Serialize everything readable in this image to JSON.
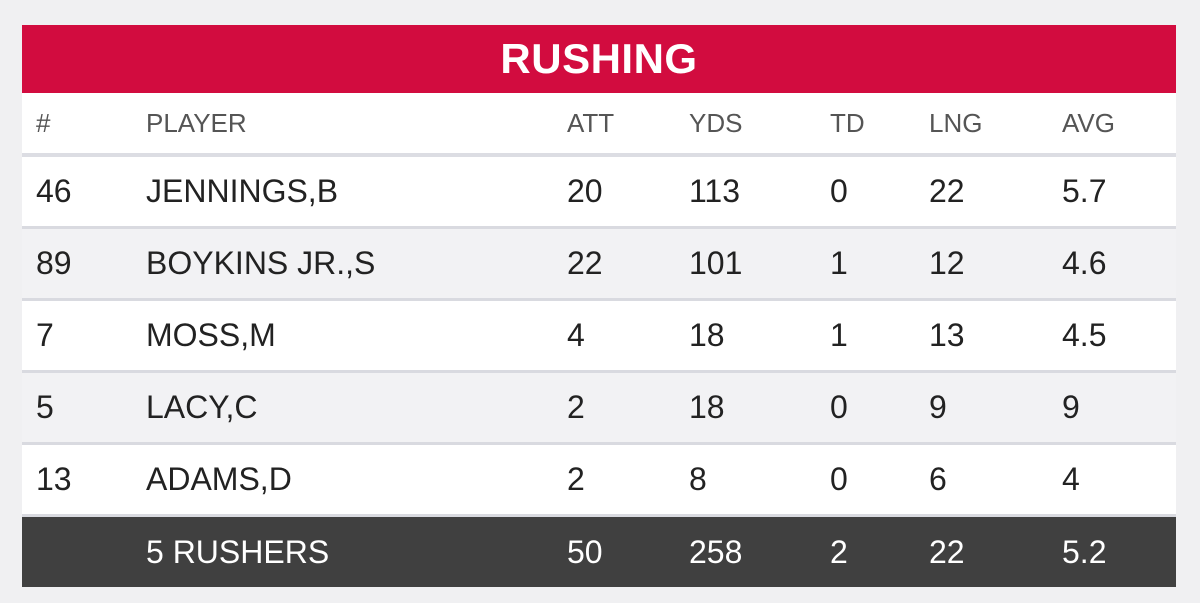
{
  "title": "RUSHING",
  "colors": {
    "title_bar": "#d20c3f",
    "total_row": "#404040",
    "alt_row": "#f2f2f4"
  },
  "headers": {
    "num": "#",
    "player": "PLAYER",
    "att": "ATT",
    "yds": "YDS",
    "td": "TD",
    "lng": "LNG",
    "avg": "AVG"
  },
  "rows": [
    {
      "num": "46",
      "player": "JENNINGS,B",
      "att": "20",
      "yds": "113",
      "td": "0",
      "lng": "22",
      "avg": "5.7"
    },
    {
      "num": "89",
      "player": "BOYKINS JR.,S",
      "att": "22",
      "yds": "101",
      "td": "1",
      "lng": "12",
      "avg": "4.6"
    },
    {
      "num": "7",
      "player": "MOSS,M",
      "att": "4",
      "yds": "18",
      "td": "1",
      "lng": "13",
      "avg": "4.5"
    },
    {
      "num": "5",
      "player": "LACY,C",
      "att": "2",
      "yds": "18",
      "td": "0",
      "lng": "9",
      "avg": "9"
    },
    {
      "num": "13",
      "player": "ADAMS,D",
      "att": "2",
      "yds": "8",
      "td": "0",
      "lng": "6",
      "avg": "4"
    }
  ],
  "total": {
    "player": "5 RUSHERS",
    "att": "50",
    "yds": "258",
    "td": "2",
    "lng": "22",
    "avg": "5.2"
  }
}
